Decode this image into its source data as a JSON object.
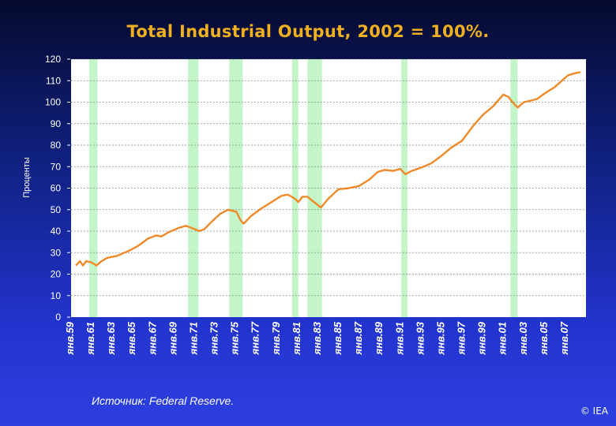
{
  "chart_data": {
    "type": "line",
    "title": "Total Industrial Output, 2002 = 100%.",
    "ylabel": "Проценты",
    "xlabel": "",
    "ylim": [
      0,
      120
    ],
    "yticks": [
      0,
      10,
      20,
      30,
      40,
      50,
      60,
      70,
      80,
      90,
      100,
      110,
      120
    ],
    "xlim": [
      1959.0,
      2008.0
    ],
    "xticks": [
      {
        "x": 1959,
        "label": "янв.59"
      },
      {
        "x": 1961,
        "label": "янв.61"
      },
      {
        "x": 1963,
        "label": "янв.63"
      },
      {
        "x": 1965,
        "label": "янв.65"
      },
      {
        "x": 1967,
        "label": "янв.67"
      },
      {
        "x": 1969,
        "label": "янв.69"
      },
      {
        "x": 1971,
        "label": "янв.71"
      },
      {
        "x": 1973,
        "label": "янв.73"
      },
      {
        "x": 1975,
        "label": "янв.75"
      },
      {
        "x": 1977,
        "label": "янв.77"
      },
      {
        "x": 1979,
        "label": "янв.79"
      },
      {
        "x": 1981,
        "label": "янв.81"
      },
      {
        "x": 1983,
        "label": "янв.83"
      },
      {
        "x": 1985,
        "label": "янв.85"
      },
      {
        "x": 1987,
        "label": "янв.87"
      },
      {
        "x": 1989,
        "label": "янв.89"
      },
      {
        "x": 1991,
        "label": "янв.91"
      },
      {
        "x": 1993,
        "label": "янв.93"
      },
      {
        "x": 1995,
        "label": "янв.95"
      },
      {
        "x": 1997,
        "label": "янв.97"
      },
      {
        "x": 1999,
        "label": "янв.99"
      },
      {
        "x": 2001,
        "label": "янв.01"
      },
      {
        "x": 2003,
        "label": "янв.03"
      },
      {
        "x": 2005,
        "label": "янв.05"
      },
      {
        "x": 2007,
        "label": "янв.07"
      }
    ],
    "grid": true,
    "recession_bands": [
      {
        "start": 1960.3,
        "end": 1961.1
      },
      {
        "start": 1969.9,
        "end": 1970.9
      },
      {
        "start": 1973.9,
        "end": 1975.2
      },
      {
        "start": 1980.0,
        "end": 1980.6
      },
      {
        "start": 1981.5,
        "end": 1982.9
      },
      {
        "start": 1990.6,
        "end": 1991.2
      },
      {
        "start": 2001.2,
        "end": 2001.9
      }
    ],
    "series": [
      {
        "color": "#f08a28",
        "points": [
          [
            1959.0,
            24
          ],
          [
            1959.4,
            26
          ],
          [
            1959.7,
            24
          ],
          [
            1960.0,
            26
          ],
          [
            1960.5,
            25.5
          ],
          [
            1961.0,
            24
          ],
          [
            1961.5,
            26
          ],
          [
            1962.0,
            27.5
          ],
          [
            1963.0,
            28.5
          ],
          [
            1964.0,
            30.5
          ],
          [
            1965.0,
            33
          ],
          [
            1966.0,
            36.5
          ],
          [
            1966.8,
            38
          ],
          [
            1967.3,
            37.5
          ],
          [
            1968.0,
            39.5
          ],
          [
            1969.0,
            41.5
          ],
          [
            1969.7,
            42.5
          ],
          [
            1970.5,
            41
          ],
          [
            1971.0,
            40
          ],
          [
            1971.5,
            41
          ],
          [
            1972.0,
            43.5
          ],
          [
            1973.0,
            48
          ],
          [
            1973.8,
            50
          ],
          [
            1974.6,
            49
          ],
          [
            1975.0,
            45
          ],
          [
            1975.3,
            43.5
          ],
          [
            1976.0,
            47
          ],
          [
            1977.0,
            50.5
          ],
          [
            1978.0,
            53.5
          ],
          [
            1979.0,
            56.5
          ],
          [
            1979.6,
            57
          ],
          [
            1980.3,
            55
          ],
          [
            1980.6,
            53.5
          ],
          [
            1981.0,
            56
          ],
          [
            1981.5,
            56
          ],
          [
            1982.0,
            54
          ],
          [
            1982.8,
            51
          ],
          [
            1983.5,
            55
          ],
          [
            1984.5,
            59.5
          ],
          [
            1985.5,
            60
          ],
          [
            1986.5,
            61
          ],
          [
            1987.5,
            64
          ],
          [
            1988.3,
            67.5
          ],
          [
            1989.0,
            68.5
          ],
          [
            1989.8,
            68
          ],
          [
            1990.5,
            69
          ],
          [
            1991.0,
            66.5
          ],
          [
            1991.6,
            68
          ],
          [
            1992.5,
            69.5
          ],
          [
            1993.5,
            71.5
          ],
          [
            1994.5,
            75
          ],
          [
            1995.5,
            79
          ],
          [
            1996.5,
            82
          ],
          [
            1997.5,
            88.5
          ],
          [
            1998.5,
            94
          ],
          [
            1999.5,
            98
          ],
          [
            2000.5,
            103.5
          ],
          [
            2001.0,
            102.5
          ],
          [
            2001.5,
            99.5
          ],
          [
            2001.9,
            97.5
          ],
          [
            2002.5,
            100
          ],
          [
            2003.0,
            100.5
          ],
          [
            2003.8,
            101.5
          ],
          [
            2004.5,
            104
          ],
          [
            2005.5,
            107
          ],
          [
            2006.2,
            110
          ],
          [
            2006.8,
            112.5
          ],
          [
            2007.5,
            113.5
          ],
          [
            2008.0,
            114
          ]
        ]
      }
    ]
  },
  "footer": {
    "source": "Источник: Federal Reserve.",
    "copyright": "© IEA"
  }
}
